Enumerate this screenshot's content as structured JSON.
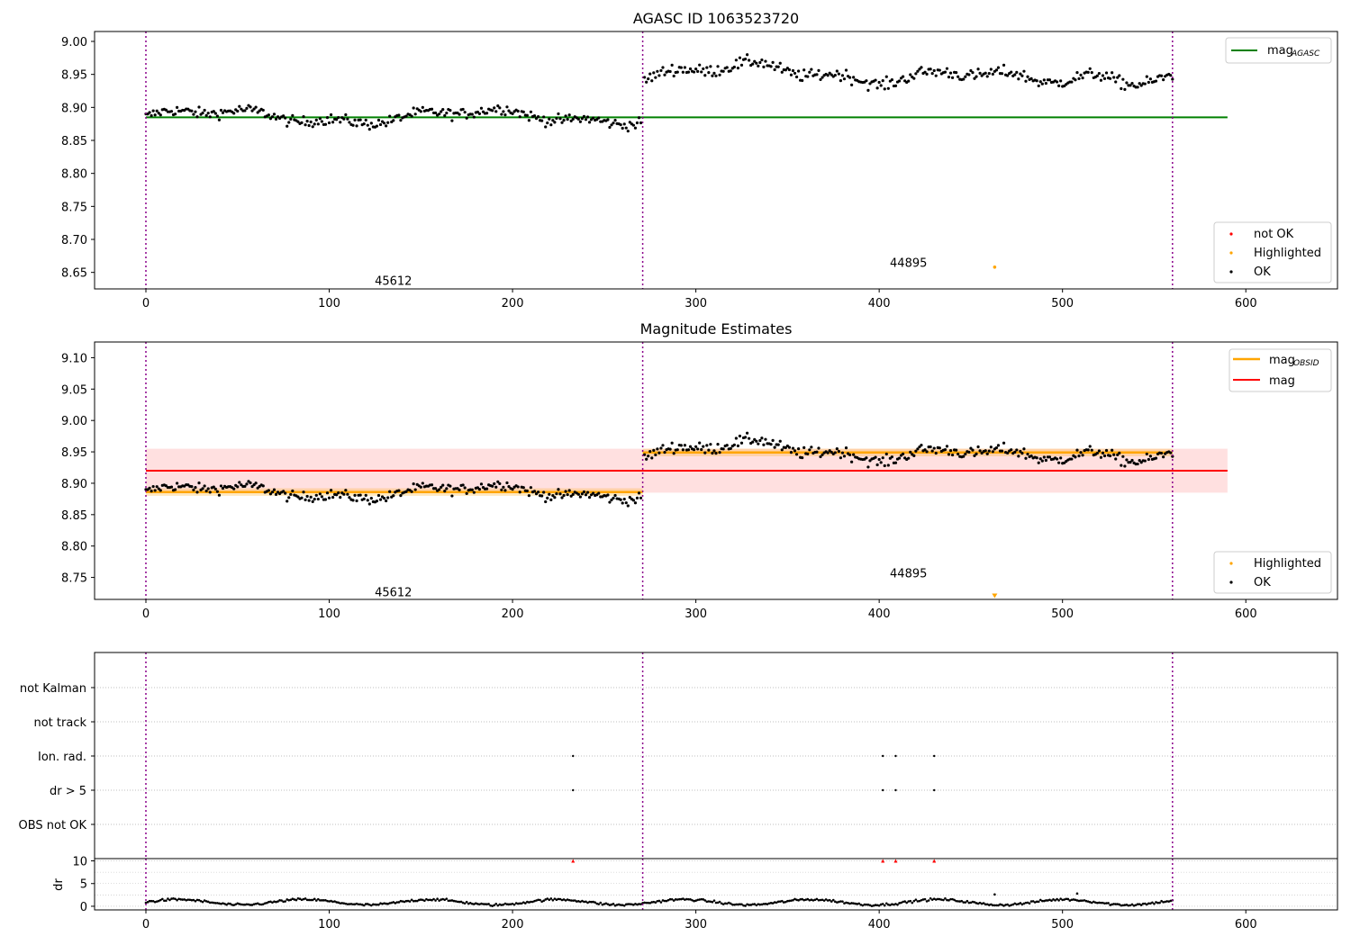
{
  "chart_data": [
    {
      "type": "scatter",
      "title": "AGASC ID 1063523720",
      "xlim": [
        -28,
        650
      ],
      "ylim": [
        8.625,
        9.015
      ],
      "xticks": [
        0,
        100,
        200,
        300,
        400,
        500,
        600
      ],
      "yticks": [
        8.65,
        8.7,
        8.75,
        8.8,
        8.85,
        8.9,
        8.95,
        9.0
      ],
      "vlines": [
        0,
        271,
        560
      ],
      "vline_color": "#8b008b",
      "hlines": [
        {
          "y": 8.885,
          "x0": 0,
          "x1": 590,
          "color": "#008000",
          "label": "mag<sub>AGASC</sub>"
        }
      ],
      "obsid_labels": [
        {
          "text": "45612",
          "x": 135,
          "y": 8.638
        },
        {
          "text": "44895",
          "x": 416,
          "y": 8.665
        }
      ],
      "highlighted_points": [
        {
          "x": 463,
          "y": 8.658
        }
      ],
      "segments": [
        {
          "x0": 0,
          "x1": 270,
          "base": 8.886,
          "amp": 0.009,
          "noise": 0.008
        },
        {
          "x0": 272,
          "x1": 560,
          "base": 8.952,
          "amp": 0.012,
          "noise": 0.009
        }
      ],
      "legend_upper": [
        "mag_AGASC"
      ],
      "legend_lower": [
        {
          "label": "not OK",
          "color": "#ff0000"
        },
        {
          "label": "Highlighted",
          "color": "#ffa500"
        },
        {
          "label": "OK",
          "color": "#000000"
        }
      ],
      "legend_upper_main": "mag",
      "legend_upper_sub": "AGASC"
    },
    {
      "type": "scatter",
      "title": "Magnitude Estimates",
      "xlim": [
        -28,
        650
      ],
      "ylim": [
        8.715,
        9.125
      ],
      "xticks": [
        0,
        100,
        200,
        300,
        400,
        500,
        600
      ],
      "yticks": [
        8.75,
        8.8,
        8.85,
        8.9,
        8.95,
        9.0,
        9.05,
        9.1
      ],
      "vlines": [
        0,
        271,
        560
      ],
      "mag_line": {
        "y": 8.92,
        "band": [
          8.885,
          8.955
        ],
        "x0": 0,
        "x1": 590,
        "color": "#ff0000"
      },
      "obsid_mags": [
        {
          "x0": 0,
          "x1": 271,
          "y": 8.886,
          "color": "#ffa500"
        },
        {
          "x0": 271,
          "x1": 560,
          "y": 8.949,
          "color": "#ffa500"
        }
      ],
      "obsid_labels": [
        {
          "text": "45612",
          "x": 135,
          "y": 8.727
        },
        {
          "text": "44895",
          "x": 416,
          "y": 8.757
        }
      ],
      "highlighted_points": [
        {
          "x": 463,
          "y": 8.72
        }
      ],
      "legend_upper": [
        {
          "main": "mag",
          "sub": "OBSID",
          "color": "#ffa500"
        },
        {
          "main": "mag",
          "sub": "",
          "color": "#ff0000"
        }
      ],
      "legend_lower": [
        {
          "label": "Highlighted",
          "color": "#ffa500"
        },
        {
          "label": "OK",
          "color": "#000000"
        }
      ]
    },
    {
      "type": "scatter",
      "categories": [
        "OBS not OK",
        "dr > 5",
        "Ion. rad.",
        "not track",
        "not Kalman"
      ],
      "xlim": [
        -28,
        650
      ],
      "vlines": [
        0,
        271,
        560
      ],
      "flag_points": [
        {
          "category": "Ion. rad.",
          "x": [
            233,
            402,
            409,
            430
          ]
        },
        {
          "category": "dr > 5",
          "x": [
            233,
            402,
            409,
            430
          ]
        }
      ]
    },
    {
      "type": "scatter",
      "ylabel": "dr",
      "xlim": [
        -28,
        650
      ],
      "ylim": [
        -0.8,
        10.5
      ],
      "yticks": [
        0,
        5,
        10
      ],
      "xticks": [
        0,
        100,
        200,
        300,
        400,
        500,
        600
      ],
      "vlines": [
        0,
        271,
        560
      ],
      "outliers": [
        {
          "x": 233,
          "y": 10
        },
        {
          "x": 402,
          "y": 10
        },
        {
          "x": 409,
          "y": 10
        },
        {
          "x": 430,
          "y": 10
        }
      ],
      "extra_points": [
        {
          "x": 463,
          "y": 2.6
        },
        {
          "x": 508,
          "y": 2.8
        }
      ]
    }
  ],
  "colors": {
    "ok": "#000000",
    "not_ok": "#ff0000",
    "highlighted": "#ffa500",
    "agasc": "#008000",
    "mag": "#ff0000",
    "vline": "#8b008b"
  }
}
